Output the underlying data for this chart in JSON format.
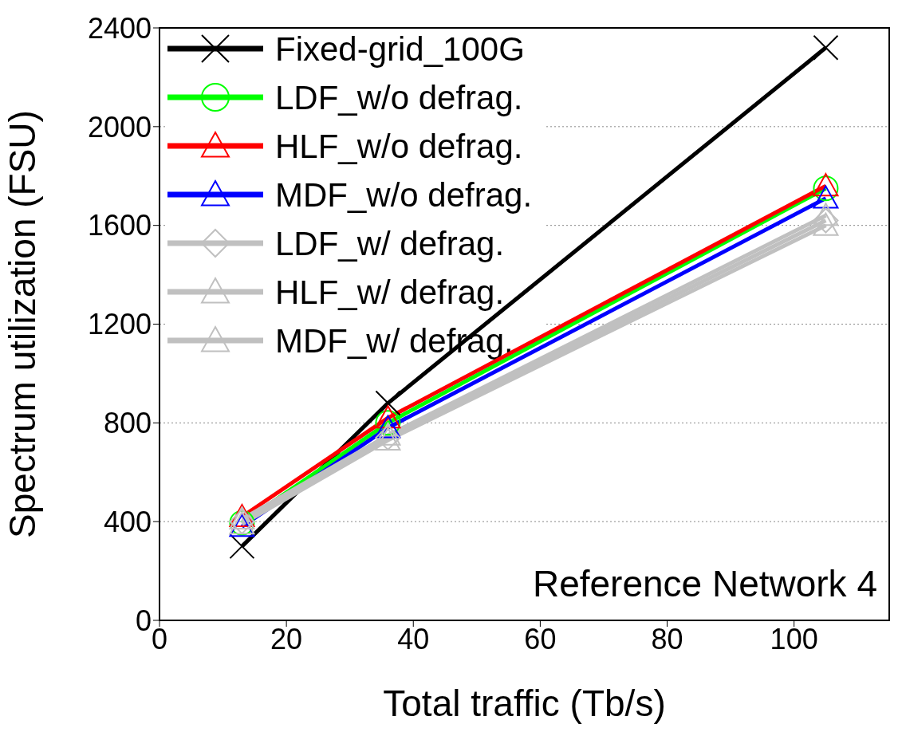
{
  "chart_data": {
    "type": "line",
    "xlabel": "Total traffic (Tb/s)",
    "ylabel": "Spectrum utilization (FSU)",
    "x": [
      13,
      36,
      105
    ],
    "series": [
      {
        "name": "Fixed-grid_100G",
        "color": "#000000",
        "marker": "cross",
        "values": [
          300,
          880,
          2320
        ]
      },
      {
        "name": "LDF_w/o defrag.",
        "color": "#00ff00",
        "marker": "circle",
        "values": [
          395,
          800,
          1750
        ]
      },
      {
        "name": "HLF_w/o defrag.",
        "color": "#ff0000",
        "marker": "triangle",
        "values": [
          420,
          820,
          1760
        ]
      },
      {
        "name": "MDF_w/o defrag.",
        "color": "#0000ff",
        "marker": "triangle",
        "values": [
          380,
          780,
          1710
        ]
      },
      {
        "name": "LDF_w/ defrag.",
        "color": "#c0c0c0",
        "marker": "diamond",
        "values": [
          400,
          740,
          1620
        ]
      },
      {
        "name": "HLF_w/ defrag.",
        "color": "#c0c0c0",
        "marker": "triangle",
        "values": [
          390,
          730,
          1600
        ]
      },
      {
        "name": "MDF_w/ defrag.",
        "color": "#c0c0c0",
        "marker": "triangle",
        "values": [
          410,
          750,
          1640
        ]
      }
    ],
    "xlim": [
      0,
      115
    ],
    "xticks": [
      0,
      20,
      40,
      60,
      80,
      100
    ],
    "ylim": [
      0,
      2400
    ],
    "yticks": [
      0,
      400,
      800,
      1200,
      1600,
      2000,
      2400
    ],
    "grid": "y",
    "legend": "top left",
    "line_style": "solid",
    "annotations": [
      "Reference Network 4"
    ]
  }
}
